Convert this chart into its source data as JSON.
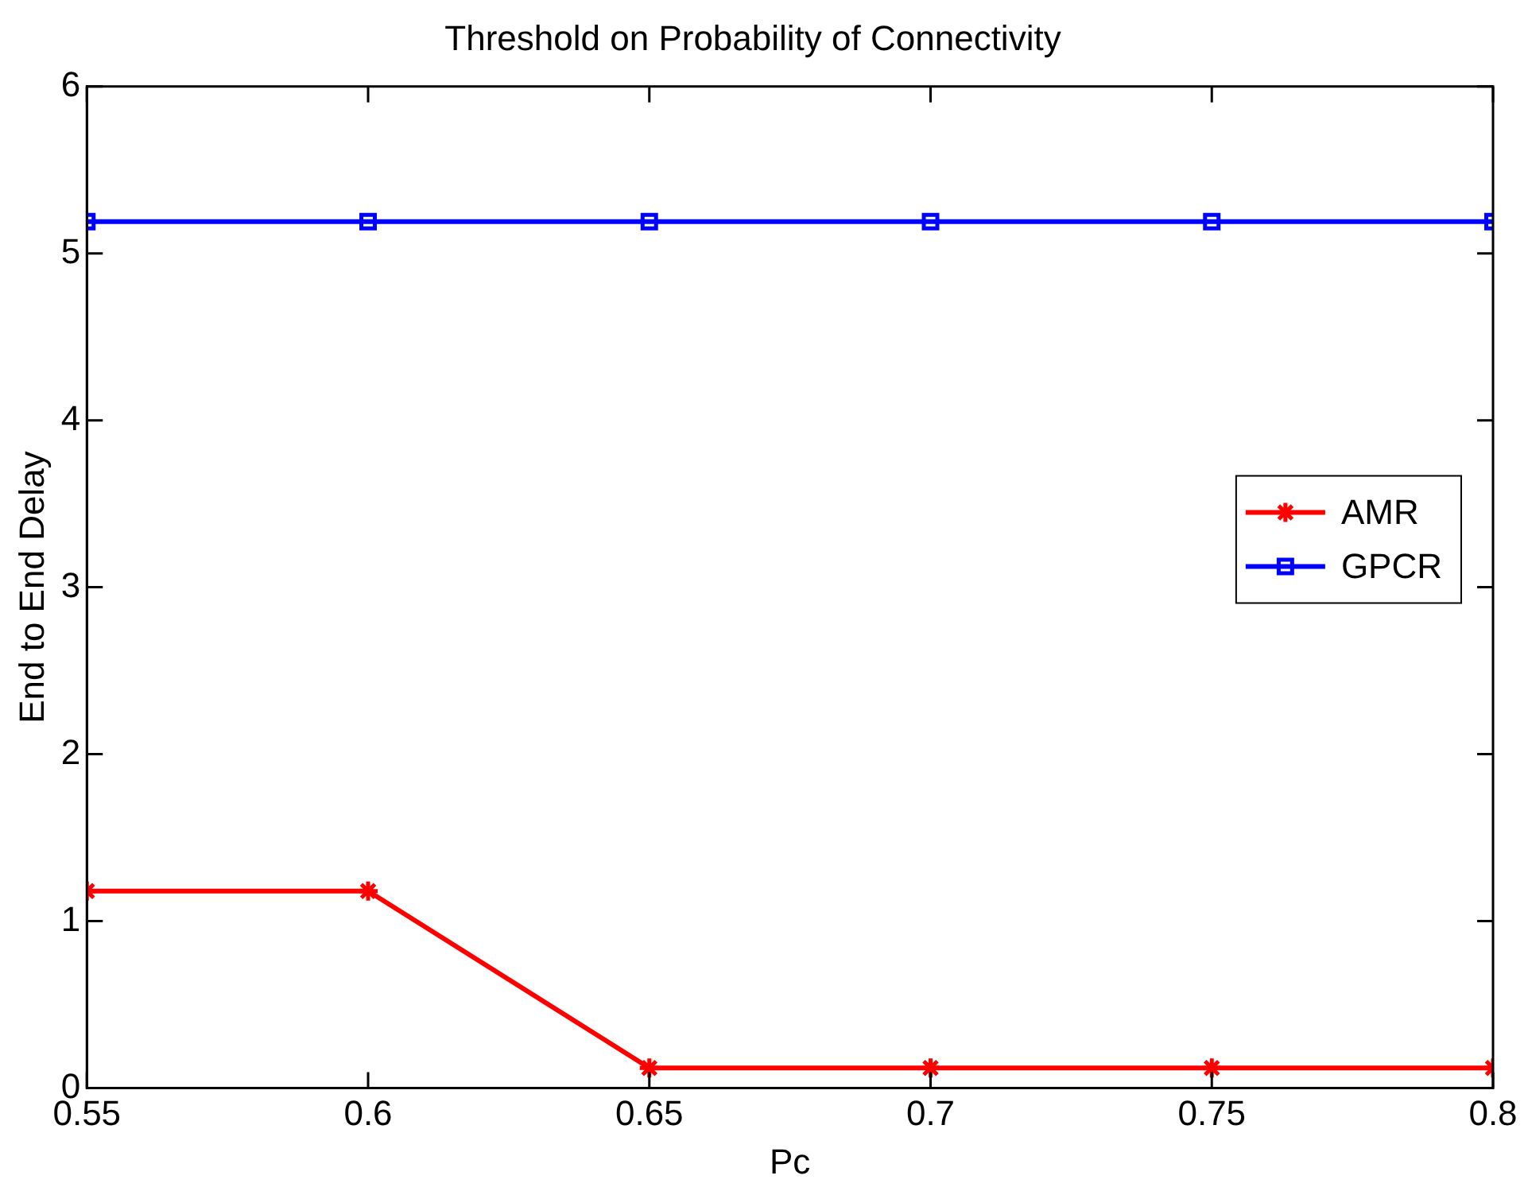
{
  "chart_data": {
    "type": "line",
    "title": "Threshold on Probability of Connectivity",
    "xlabel": "Pc",
    "ylabel": "End to End Delay",
    "x": [
      0.55,
      0.6,
      0.65,
      0.7,
      0.75,
      0.8
    ],
    "series": [
      {
        "name": "AMR",
        "color": "#ff0000",
        "marker": "cross",
        "values": [
          1.18,
          1.18,
          0.12,
          0.12,
          0.12,
          0.12
        ]
      },
      {
        "name": "GPCR",
        "color": "#0000ff",
        "marker": "square",
        "values": [
          5.19,
          5.19,
          5.19,
          5.19,
          5.19,
          5.19
        ]
      }
    ],
    "xlim": [
      0.55,
      0.8
    ],
    "xticks": [
      0.55,
      0.6,
      0.65,
      0.7,
      0.75,
      0.8
    ],
    "ylim": [
      0,
      6
    ],
    "yticks": [
      0,
      1,
      2,
      3,
      4,
      5,
      6
    ],
    "grid": false,
    "legend": "right",
    "line_style": "solid"
  }
}
